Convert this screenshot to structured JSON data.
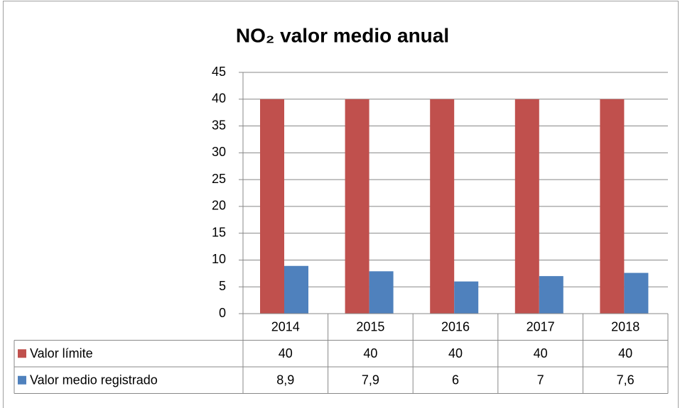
{
  "chart_data": {
    "type": "bar",
    "title": "NO₂ valor medio anual",
    "categories": [
      "2014",
      "2015",
      "2016",
      "2017",
      "2018"
    ],
    "series": [
      {
        "name": "Valor límite",
        "color": "#c0504d",
        "values": [
          40,
          40,
          40,
          40,
          40
        ]
      },
      {
        "name": "Valor medio registrado",
        "color": "#4f81bd",
        "values": [
          8.9,
          7.9,
          6,
          7,
          7.6
        ],
        "value_labels": [
          "8,9",
          "7,9",
          "6",
          "7",
          "7,6"
        ]
      }
    ],
    "ylim": [
      0,
      45
    ],
    "yticks": [
      0,
      5,
      10,
      15,
      20,
      25,
      30,
      35,
      40,
      45
    ],
    "grid": true,
    "data_table": true
  }
}
